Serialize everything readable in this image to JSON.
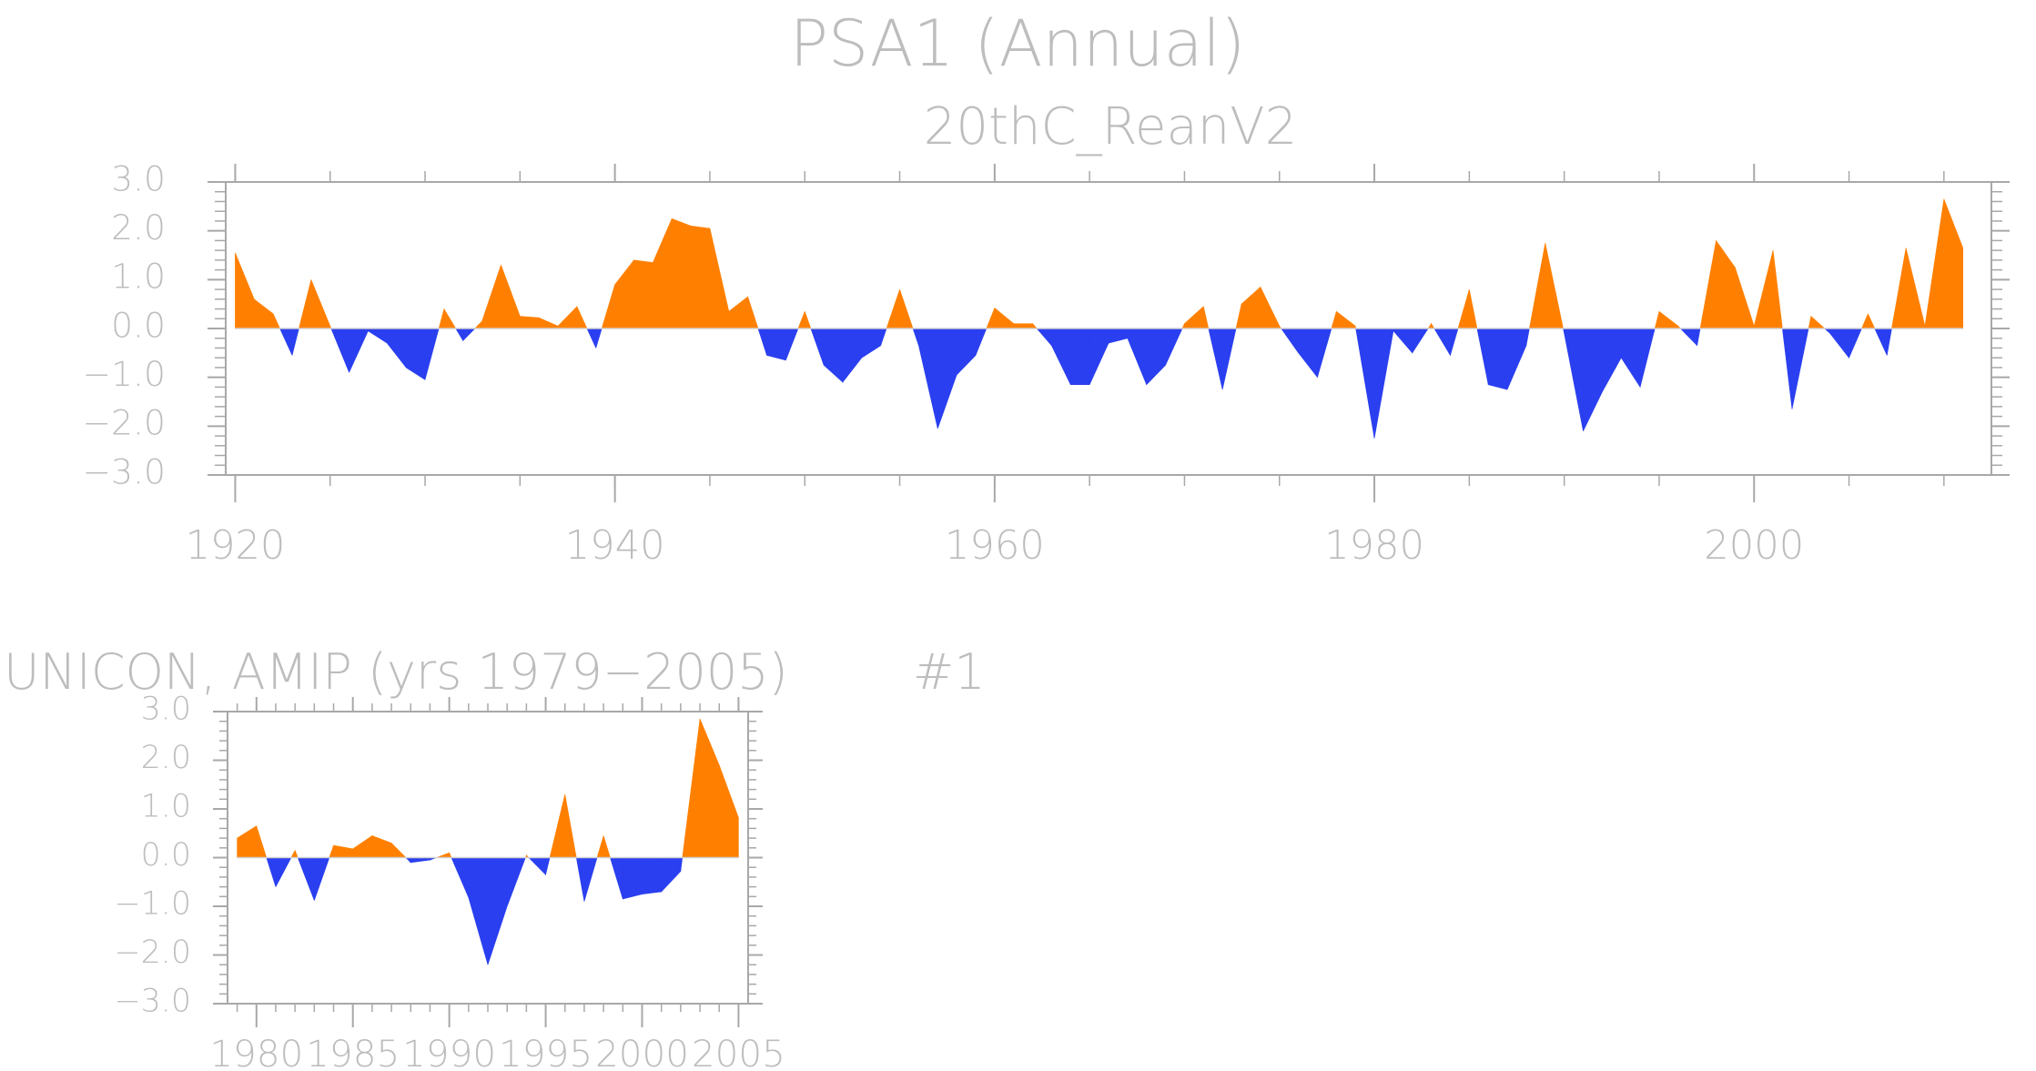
{
  "figure": {
    "title": "PSA1 (Annual)",
    "subtitle": "20thC_ReanV2",
    "panel2_title": "UNICON, AMIP (yrs 1979−2005)",
    "panel2_tag": "#1"
  },
  "colors": {
    "positive": "#ff8000",
    "negative": "#2a3ff0",
    "axis": "#a8a8a8",
    "text": "#bdbdbd"
  },
  "chart_data": [
    {
      "type": "area",
      "title": "20thC_ReanV2",
      "x": [
        1920,
        1921,
        1922,
        1923,
        1924,
        1925,
        1926,
        1927,
        1928,
        1929,
        1930,
        1931,
        1932,
        1933,
        1934,
        1935,
        1936,
        1937,
        1938,
        1939,
        1940,
        1941,
        1942,
        1943,
        1944,
        1945,
        1946,
        1947,
        1948,
        1949,
        1950,
        1951,
        1952,
        1953,
        1954,
        1955,
        1956,
        1957,
        1958,
        1959,
        1960,
        1961,
        1962,
        1963,
        1964,
        1965,
        1966,
        1967,
        1968,
        1969,
        1970,
        1971,
        1972,
        1973,
        1974,
        1975,
        1976,
        1977,
        1978,
        1979,
        1980,
        1981,
        1982,
        1983,
        1984,
        1985,
        1986,
        1987,
        1988,
        1989,
        1990,
        1991,
        1992,
        1993,
        1994,
        1995,
        1996,
        1997,
        1998,
        1999,
        2000,
        2001,
        2002,
        2003,
        2004,
        2005,
        2006,
        2007,
        2008,
        2009,
        2010,
        2011
      ],
      "values": [
        1.55,
        0.6,
        0.3,
        -0.55,
        1.0,
        0.05,
        -0.9,
        -0.05,
        -0.3,
        -0.8,
        -1.05,
        0.4,
        -0.25,
        0.15,
        1.3,
        0.25,
        0.22,
        0.05,
        0.45,
        -0.4,
        0.9,
        1.4,
        1.35,
        2.25,
        2.1,
        2.05,
        0.35,
        0.65,
        -0.55,
        -0.65,
        0.35,
        -0.75,
        -1.1,
        -0.6,
        -0.35,
        0.8,
        -0.35,
        -2.05,
        -0.95,
        -0.55,
        0.42,
        0.1,
        0.1,
        -0.35,
        -1.15,
        -1.15,
        -0.3,
        -0.2,
        -1.15,
        -0.75,
        0.1,
        0.45,
        -1.25,
        0.5,
        0.85,
        0.05,
        -0.5,
        -1.0,
        0.35,
        0.05,
        -2.25,
        -0.05,
        -0.5,
        0.1,
        -0.55,
        0.8,
        -1.15,
        -1.25,
        -0.35,
        1.75,
        -0.1,
        -2.1,
        -1.3,
        -0.6,
        -1.2,
        0.35,
        0.05,
        -0.35,
        1.8,
        1.25,
        0.05,
        1.6,
        -1.65,
        0.25,
        -0.1,
        -0.6,
        0.3,
        -0.55,
        1.65,
        0.05,
        2.65,
        1.65
      ],
      "xlim": [
        1919.5,
        2012.5
      ],
      "ylim": [
        -3.0,
        3.0
      ],
      "x_ticks": [
        1920,
        1940,
        1960,
        1980,
        2000
      ],
      "x_tick_labels": [
        "1920",
        "1940",
        "1960",
        "1980",
        "2000"
      ],
      "y_ticks": [
        3.0,
        2.0,
        1.0,
        0.0,
        -1.0,
        -2.0,
        -3.0
      ],
      "y_tick_labels": [
        "3.0",
        "2.0",
        "1.0",
        "0.0",
        "−1.0",
        "−2.0",
        "−3.0"
      ],
      "x_minor_step": 5,
      "y_minor_step": 0.2
    },
    {
      "type": "area",
      "title": "UNICON, AMIP (yrs 1979−2005)",
      "x": [
        1979,
        1980,
        1981,
        1982,
        1983,
        1984,
        1985,
        1986,
        1987,
        1988,
        1989,
        1990,
        1991,
        1992,
        1993,
        1994,
        1995,
        1996,
        1997,
        1998,
        1999,
        2000,
        2001,
        2002,
        2003,
        2004,
        2005
      ],
      "values": [
        0.4,
        0.65,
        -0.6,
        0.15,
        -0.88,
        0.25,
        0.18,
        0.45,
        0.3,
        -0.1,
        -0.05,
        0.1,
        -0.82,
        -2.2,
        -1.0,
        0.05,
        -0.35,
        1.3,
        -0.9,
        0.45,
        -0.85,
        -0.75,
        -0.7,
        -0.28,
        2.85,
        1.9,
        0.82
      ],
      "xlim": [
        1978.5,
        2005.5
      ],
      "ylim": [
        -3.0,
        3.0
      ],
      "x_ticks": [
        1980,
        1985,
        1990,
        1995,
        2000,
        2005
      ],
      "x_tick_labels": [
        "1980",
        "1985",
        "1990",
        "1995",
        "2000",
        "2005"
      ],
      "y_ticks": [
        3.0,
        2.0,
        1.0,
        0.0,
        -1.0,
        -2.0,
        -3.0
      ],
      "y_tick_labels": [
        "3.0",
        "2.0",
        "1.0",
        "0.0",
        "−1.0",
        "−2.0",
        "−3.0"
      ],
      "x_minor_step": 1,
      "y_minor_step": 0.2
    }
  ]
}
